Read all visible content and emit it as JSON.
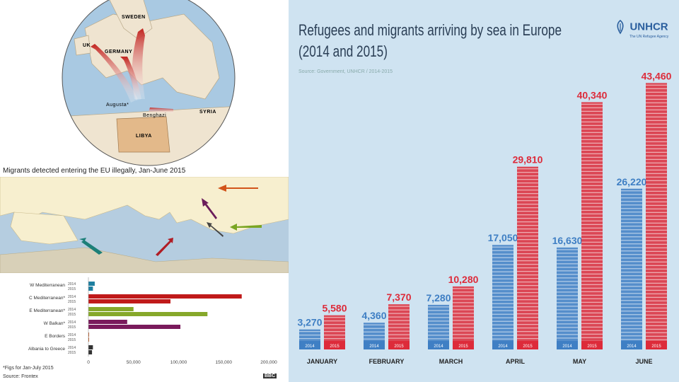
{
  "left_panel": {
    "top_map": {
      "labels": [
        "SWEDEN",
        "UK",
        "GERMANY",
        "Augusta*",
        "Benghazi",
        "SYRIA",
        "LIBYA"
      ]
    },
    "map_caption": "Migrants detected entering the EU illegally, Jan-June 2015",
    "hbar_chart": {
      "footnote": "*Figs for Jan-July 2015",
      "source": "Source: Frontex",
      "logo": "BBC"
    }
  },
  "right_panel": {
    "title_line1": "Refugees and migrants arriving by sea in Europe",
    "title_line2": "(2014 and 2015)",
    "source": "Source: Government, UNHCR / 2014-2015",
    "logo_text": "UNHCR",
    "logo_sub": "The UN Refugee Agency"
  },
  "chart_data": [
    {
      "type": "bar",
      "orientation": "horizontal",
      "categories": [
        "W Mediterranean",
        "C Mediterranean*",
        "E Mediterranean*",
        "W Balkan*",
        "E Borders",
        "Albania to Greece"
      ],
      "series": [
        {
          "name": "2014",
          "values": [
            7000,
            170000,
            50000,
            43000,
            500,
            5000
          ],
          "color": "#1e7fa0"
        },
        {
          "name": "2015",
          "values": [
            5000,
            91000,
            132000,
            102000,
            600,
            4000
          ],
          "color": "varies"
        }
      ],
      "series_colors_2015": [
        "#1e7fa0",
        "#c01a1a",
        "#86a82a",
        "#7a1a5c",
        "#c0541a",
        "#333333"
      ],
      "series_colors_2014": [
        "#1e7fa0",
        "#c01a1a",
        "#86a82a",
        "#7a1a5c",
        "#c0541a",
        "#333333"
      ],
      "xticks": [
        "0",
        "50,000",
        "100,000",
        "150,000",
        "200,000"
      ],
      "xlim": [
        0,
        200000
      ]
    },
    {
      "type": "bar",
      "title": "Refugees and migrants arriving by sea in Europe (2014 and 2015)",
      "categories": [
        "JANUARY",
        "FEBRUARY",
        "MARCH",
        "APRIL",
        "MAY",
        "JUNE"
      ],
      "series": [
        {
          "name": "2014",
          "values": [
            3270,
            4360,
            7280,
            17050,
            16630,
            26220
          ],
          "labels": [
            "3,270",
            "4,360",
            "7,280",
            "17,050",
            "16,630",
            "26,220"
          ],
          "color": "#3f7fc4"
        },
        {
          "name": "2015",
          "values": [
            5580,
            7370,
            10280,
            29810,
            40340,
            43460
          ],
          "labels": [
            "5,580",
            "7,370",
            "10,280",
            "29,810",
            "40,340",
            "43,460"
          ],
          "color": "#dd2b3a"
        }
      ],
      "ylim": [
        0,
        45000
      ],
      "grid": false,
      "legend": "none"
    }
  ]
}
